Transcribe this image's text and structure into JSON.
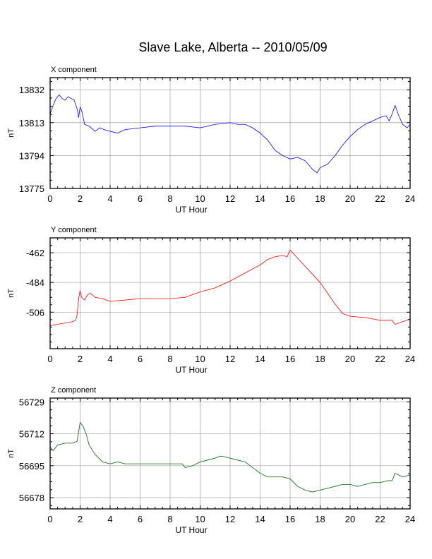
{
  "title": "Slave Lake, Alberta -- 2010/05/09",
  "chart_data": [
    {
      "type": "line",
      "panel_title": "X component",
      "xlabel": "UT Hour",
      "ylabel": "nT",
      "xlim": [
        0,
        24
      ],
      "ylim": [
        13775,
        13839
      ],
      "xticks": [
        0,
        2,
        4,
        6,
        8,
        10,
        12,
        14,
        16,
        18,
        20,
        22,
        24
      ],
      "yticks": [
        13775,
        13794,
        13813,
        13832
      ],
      "color": "#0000ff",
      "grid": true,
      "series": [
        {
          "x": [
            0,
            0.2,
            0.4,
            0.6,
            0.8,
            1.0,
            1.2,
            1.4,
            1.6,
            1.8,
            1.9,
            2.0,
            2.1,
            2.3,
            2.6,
            3.0,
            3.3,
            3.6,
            4.0,
            4.5,
            5.0,
            6.0,
            7.0,
            8.0,
            9.0,
            10.0,
            11.0,
            12.0,
            12.5,
            13.0,
            13.5,
            14.0,
            14.5,
            15.0,
            15.5,
            16.0,
            16.5,
            17.0,
            17.5,
            17.8,
            18.0,
            18.5,
            19.0,
            19.5,
            20.0,
            20.5,
            21.0,
            21.5,
            22.0,
            22.4,
            22.6,
            22.8,
            23.0,
            23.2,
            23.5,
            23.8,
            24.0
          ],
          "y": [
            13818,
            13823,
            13827,
            13829,
            13827,
            13826,
            13828,
            13827,
            13826,
            13821,
            13816,
            13822,
            13820,
            13812,
            13811,
            13808,
            13810,
            13809,
            13808,
            13807,
            13809,
            13810,
            13811,
            13811,
            13811,
            13810,
            13812,
            13813,
            13812,
            13812,
            13810,
            13807,
            13803,
            13797,
            13794,
            13792,
            13793,
            13791,
            13786,
            13784,
            13787,
            13789,
            13794,
            13800,
            13805,
            13809,
            13812,
            13814,
            13816,
            13817,
            13814,
            13818,
            13823,
            13818,
            13812,
            13810,
            13812
          ]
        }
      ]
    },
    {
      "type": "line",
      "panel_title": "Y component",
      "xlabel": "UT Hour",
      "ylabel": "nT",
      "xlim": [
        0,
        24
      ],
      "ylim": [
        -533,
        -451
      ],
      "xticks": [
        0,
        2,
        4,
        6,
        8,
        10,
        12,
        14,
        16,
        18,
        20,
        22,
        24
      ],
      "yticks": [
        -462,
        -484,
        -506
      ],
      "color": "#ff0000",
      "grid": true,
      "series": [
        {
          "x": [
            0,
            0.5,
            1.0,
            1.5,
            1.7,
            1.8,
            1.9,
            2.0,
            2.1,
            2.3,
            2.5,
            2.7,
            3.0,
            3.5,
            4.0,
            5.0,
            6.0,
            7.0,
            8.0,
            9.0,
            10.0,
            11.0,
            12.0,
            13.0,
            14.0,
            14.5,
            15.0,
            15.5,
            15.8,
            16.0,
            16.5,
            17.0,
            17.5,
            18.0,
            18.5,
            19.0,
            19.5,
            20.0,
            21.0,
            22.0,
            22.5,
            22.8,
            23.0,
            23.5,
            24.0
          ],
          "y": [
            -516,
            -515,
            -514,
            -513,
            -512,
            -508,
            -496,
            -490,
            -495,
            -497,
            -493,
            -492,
            -495,
            -496,
            -498,
            -497,
            -496,
            -496,
            -496,
            -495,
            -491,
            -488,
            -483,
            -477,
            -471,
            -467,
            -465,
            -464,
            -465,
            -460,
            -466,
            -472,
            -478,
            -484,
            -492,
            -500,
            -507,
            -509,
            -510,
            -512,
            -512,
            -512,
            -515,
            -513,
            -511
          ]
        }
      ]
    },
    {
      "type": "line",
      "panel_title": "Z component",
      "xlabel": "UT Hour",
      "ylabel": "nT",
      "xlim": [
        0,
        24
      ],
      "ylim": [
        56672,
        56731
      ],
      "xticks": [
        0,
        2,
        4,
        6,
        8,
        10,
        12,
        14,
        16,
        18,
        20,
        22,
        24
      ],
      "yticks": [
        56729,
        56712,
        56695,
        56678
      ],
      "color": "#006400",
      "grid": true,
      "series": [
        {
          "x": [
            0,
            0.2,
            0.5,
            1.0,
            1.5,
            1.8,
            2.0,
            2.2,
            2.4,
            2.6,
            3.0,
            3.5,
            4.0,
            4.5,
            5.0,
            6.0,
            7.0,
            8.0,
            8.8,
            9.0,
            9.5,
            10.0,
            10.5,
            11.0,
            11.3,
            11.5,
            12.0,
            12.5,
            13.0,
            13.5,
            14.0,
            14.5,
            15.0,
            15.5,
            16.0,
            16.5,
            17.0,
            17.5,
            18.0,
            18.5,
            19.0,
            19.5,
            20.0,
            20.5,
            21.0,
            21.5,
            22.0,
            22.5,
            22.8,
            23.0,
            23.5,
            24.0
          ],
          "y": [
            56705,
            56703,
            56706,
            56707,
            56707,
            56708,
            56718,
            56716,
            56712,
            56706,
            56701,
            56697,
            56696,
            56697,
            56696,
            56696,
            56696,
            56696,
            56696,
            56694,
            56695,
            56697,
            56698,
            56699,
            56700,
            56700,
            56699,
            56698,
            56697,
            56694,
            56691,
            56689,
            56689,
            56689,
            56688,
            56684,
            56682,
            56681,
            56682,
            56683,
            56684,
            56685,
            56685,
            56684,
            56685,
            56686,
            56686,
            56687,
            56687,
            56691,
            56689,
            56690
          ]
        }
      ]
    }
  ]
}
